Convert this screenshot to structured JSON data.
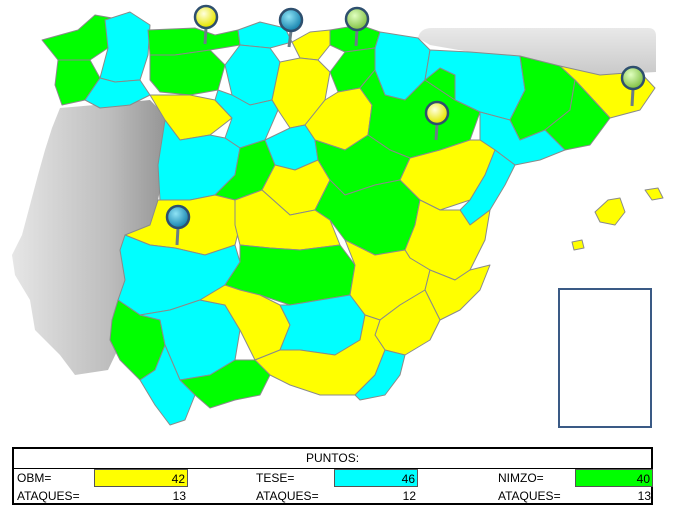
{
  "colors": {
    "obm": "#ffff00",
    "tese": "#00ffff",
    "nimzo": "#00ff00",
    "sea": "#ffffff",
    "border_gray": "#8a8a8a"
  },
  "scoreboard": {
    "title": "PUNTOS:",
    "players": [
      {
        "label": "OBM=",
        "points": "42",
        "attacks_label": "ATAQUES=",
        "attacks": "13"
      },
      {
        "label": "TESE=",
        "points": "46",
        "attacks_label": "ATAQUES=",
        "attacks": "12"
      },
      {
        "label": "NIMZO=",
        "points": "40",
        "attacks_label": "ATAQUES=",
        "attacks": "13"
      }
    ]
  },
  "map": {
    "pins": [
      {
        "name": "pin-yellow",
        "color": "yellow"
      },
      {
        "name": "pin-blue",
        "color": "blue"
      },
      {
        "name": "pin-green",
        "color": "green"
      },
      {
        "name": "pin-green",
        "color": "green"
      },
      {
        "name": "pin-yellow",
        "color": "yellow"
      },
      {
        "name": "pin-blue",
        "color": "blue"
      }
    ]
  }
}
